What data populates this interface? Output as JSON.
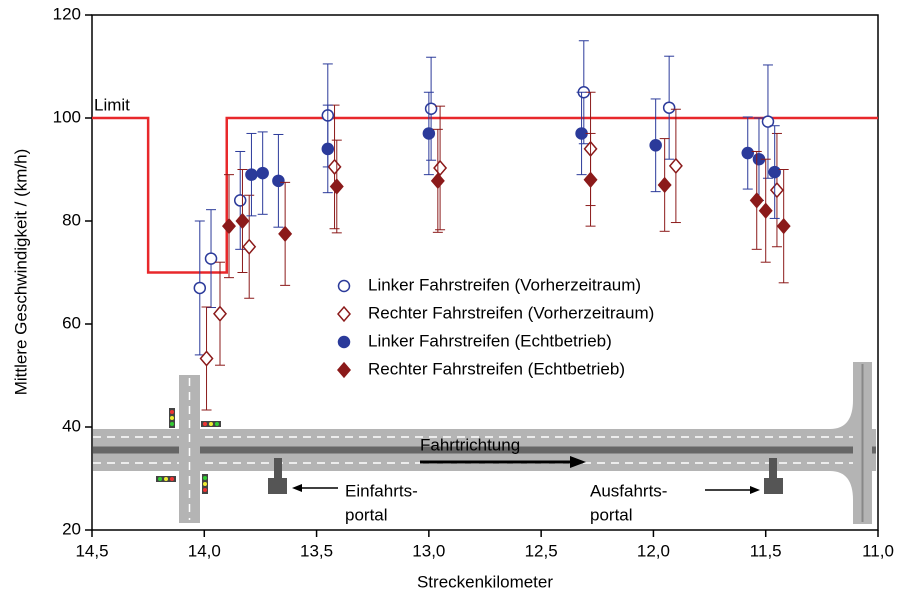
{
  "chart_data": {
    "type": "scatter",
    "x_label": "Streckenkilometer",
    "y_label": "Mittlere Geschwindigkeit / (km/h)",
    "xlim": [
      14.5,
      11.0
    ],
    "xticks": [
      {
        "value": 14.5,
        "label": "14,5"
      },
      {
        "value": 14.0,
        "label": "14,0"
      },
      {
        "value": 13.5,
        "label": "13,5"
      },
      {
        "value": 13.0,
        "label": "13,0"
      },
      {
        "value": 12.5,
        "label": "12,5"
      },
      {
        "value": 12.0,
        "label": "12,0"
      },
      {
        "value": 11.5,
        "label": "11,5"
      },
      {
        "value": 11.0,
        "label": "11,0"
      }
    ],
    "ylim": [
      20,
      120
    ],
    "yticks": [
      20,
      40,
      60,
      80,
      100,
      120
    ],
    "legend": "center-right",
    "limit": {
      "name": "Limit",
      "color": "#e8282b",
      "x": [
        14.5,
        14.25,
        14.25,
        13.9,
        13.9,
        11.0
      ],
      "y": [
        100,
        100,
        70,
        70,
        100,
        100
      ]
    },
    "series": [
      {
        "name": "Linker Fahrstreifen (Vorherzeitraum)",
        "color": "#2b3a9a",
        "marker": "open-circle",
        "x": [
          14.02,
          13.97,
          13.84,
          13.45,
          12.99,
          12.31,
          11.93,
          11.49
        ],
        "values": [
          67,
          72.7,
          84,
          100.5,
          101.8,
          105,
          102,
          99.3
        ],
        "errors": [
          13,
          9.5,
          9.5,
          10,
          10,
          10,
          10,
          11
        ]
      },
      {
        "name": "Rechter Fahrstreifen (Vorherzeitraum)",
        "color": "#8b1a1a",
        "marker": "open-diamond",
        "x": [
          13.99,
          13.93,
          13.8,
          13.42,
          12.95,
          12.28,
          11.9,
          11.45
        ],
        "values": [
          53.3,
          62,
          75,
          90.5,
          90.3,
          94,
          90.7,
          86
        ],
        "errors": [
          10,
          10,
          10,
          12,
          12,
          11,
          11,
          11
        ]
      },
      {
        "name": "Linker Fahrstreifen (Echtbetrieb)",
        "color": "#2b3a9a",
        "marker": "filled-circle",
        "x": [
          13.79,
          13.74,
          13.67,
          13.45,
          13.0,
          12.32,
          11.99,
          11.58,
          11.53,
          11.46
        ],
        "values": [
          89,
          89.3,
          87.8,
          94,
          97,
          97,
          94.7,
          93.2,
          92,
          89.5
        ],
        "errors": [
          8,
          8,
          9,
          8.5,
          8,
          8,
          9,
          7,
          8,
          9
        ]
      },
      {
        "name": "Rechter Fahrstreifen (Echtbetrieb)",
        "color": "#8b1a1a",
        "marker": "filled-diamond",
        "x": [
          13.89,
          13.83,
          13.64,
          13.41,
          12.96,
          12.28,
          11.95,
          11.54,
          11.5,
          11.42
        ],
        "values": [
          79,
          80,
          77.5,
          86.7,
          87.8,
          88,
          87,
          84,
          82,
          79
        ],
        "errors": [
          10,
          10,
          10,
          9,
          10,
          9,
          9,
          9.5,
          10,
          11
        ]
      }
    ],
    "annotations": {
      "direction": "Fahrtrichtung",
      "entry": [
        "Einfahrts-",
        "portal"
      ],
      "exit": [
        "Ausfahrts-",
        "portal"
      ]
    }
  }
}
